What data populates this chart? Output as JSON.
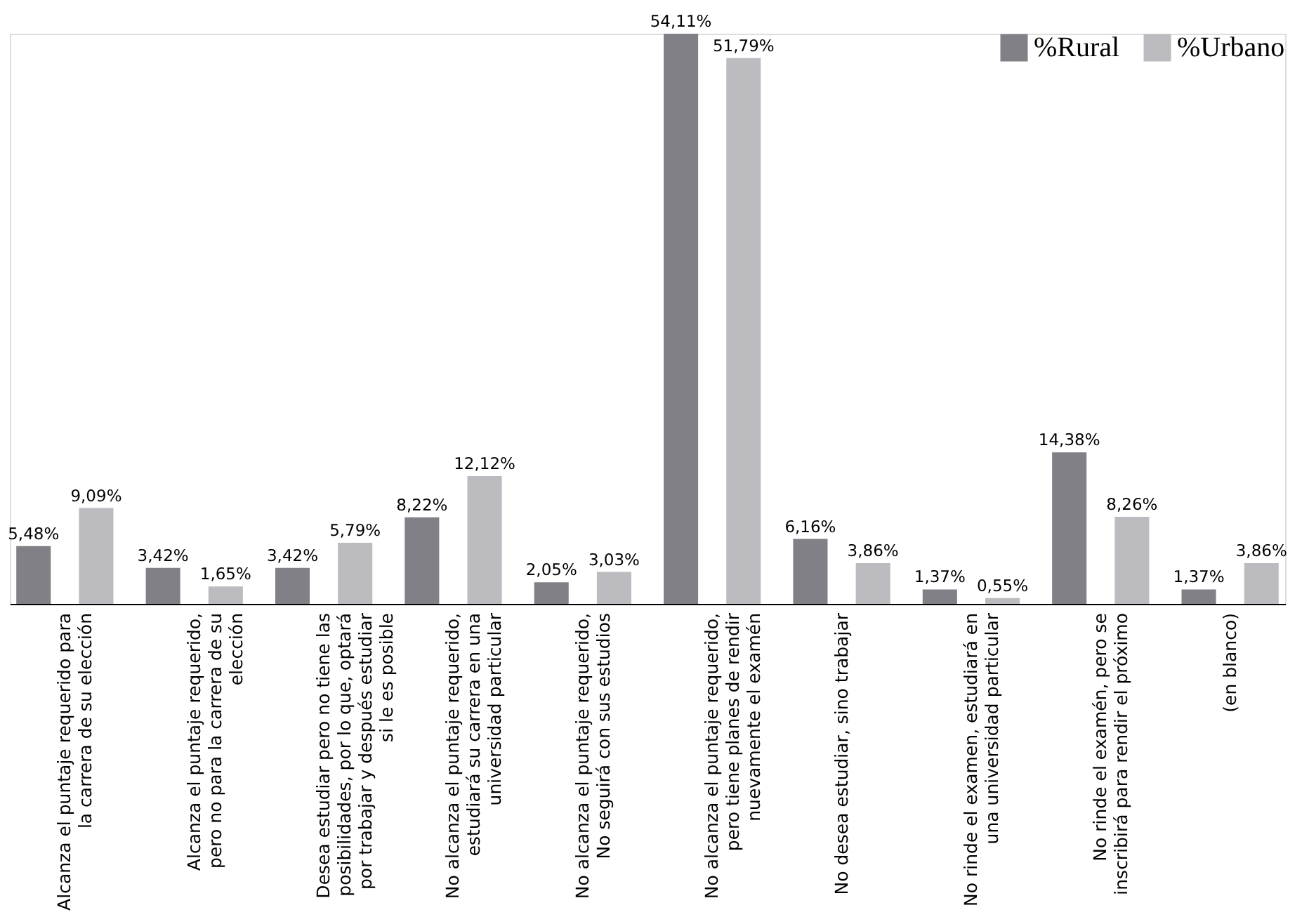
{
  "chart_data": {
    "type": "bar",
    "legend": "top right",
    "categories": [
      "Alcanza el puntaje requerido para la carrera de su elección",
      "Alcanza el puntaje requerido, pero no para la carrera de su elección",
      "Desea estudiar pero no tiene las posibilidades, por lo que, optará por trabajar y después estudiar si le es posible",
      "No alcanza el puntaje requerido, estudiará su carrera en una universidad particular",
      "No alcanza el puntaje requerido, No seguirá con sus estudios",
      "No alcanza el puntaje requerido, pero tiene planes de rendir nuevamente el examén",
      "No desea estudiar, sino trabajar",
      "No rinde el examen, estudiará en una universidad particular",
      "No rinde el examén, pero se inscribirá para rendir el próximo",
      "(en blanco)"
    ],
    "series": [
      {
        "name": "%Rural",
        "color": "#818086",
        "values": [
          5.48,
          3.42,
          3.42,
          8.22,
          2.05,
          54.11,
          6.16,
          1.37,
          14.38,
          1.37
        ],
        "value_labels": [
          "5,48%",
          "3,42%",
          "3,42%",
          "8,22%",
          "2,05%",
          "54,11%",
          "6,16%",
          "1,37%",
          "14,38%",
          "1,37%"
        ]
      },
      {
        "name": "%Urbano",
        "color": "#bcbcc0",
        "values": [
          9.09,
          1.65,
          5.79,
          12.12,
          3.03,
          51.79,
          3.86,
          0.55,
          8.26,
          3.86
        ],
        "value_labels": [
          "9,09%",
          "1,65%",
          "5,79%",
          "12,12%",
          "3,03%",
          "51,79%",
          "3,86%",
          "0,55%",
          "8,26%",
          "3,86%"
        ]
      }
    ]
  }
}
